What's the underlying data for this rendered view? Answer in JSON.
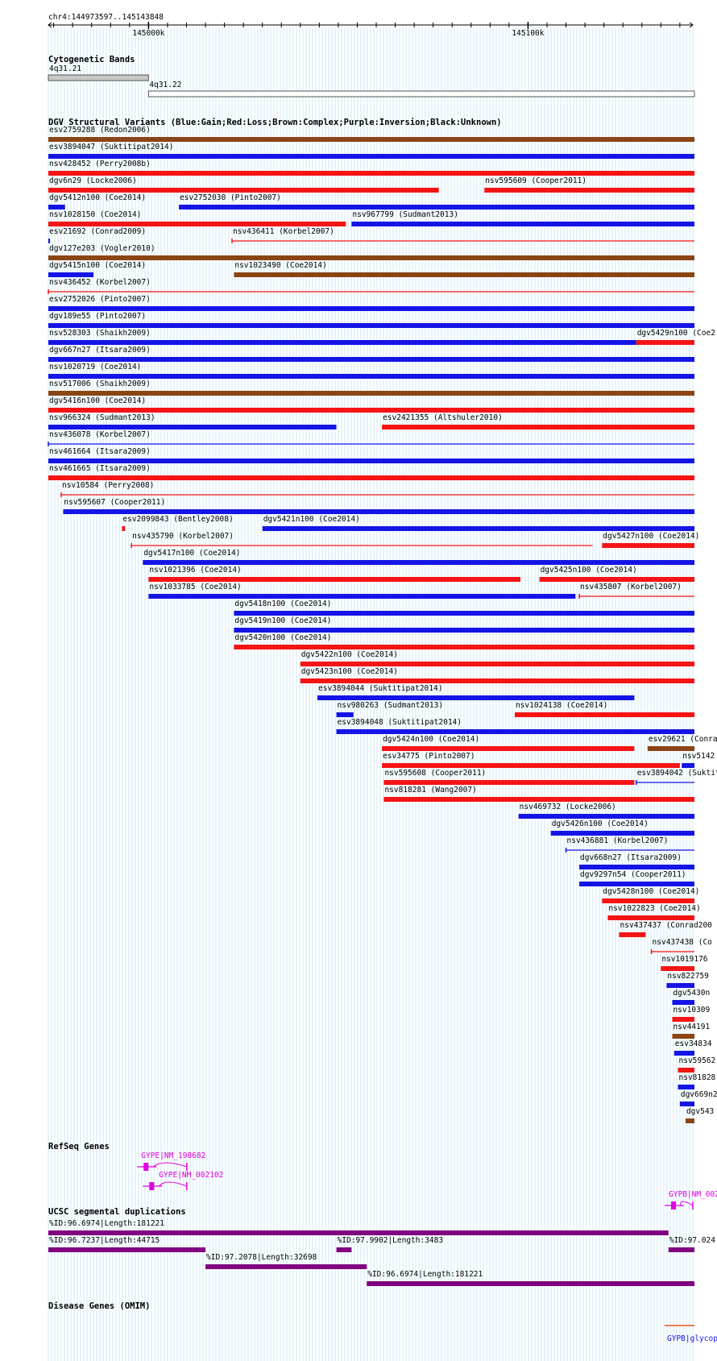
{
  "ruler": {
    "region": "chr4:144973597..145143848",
    "ticks": [
      {
        "label": "145000k",
        "pos": 145000000
      },
      {
        "label": "145100k",
        "pos": 145100000
      }
    ]
  },
  "view": {
    "start": 144973597,
    "end": 145143848
  },
  "colors": {
    "gain": "#1414e6",
    "loss": "#f51414",
    "complex": "#8b4513",
    "inversion": "#800080",
    "unknown": "#000000",
    "gene": "#e000e0",
    "omim": "#f03000",
    "grid": "#8ecae6"
  },
  "tracks": {
    "cytobands": {
      "title": "Cytogenetic Bands",
      "bands": [
        {
          "name": "4q31.21",
          "style": "gray",
          "start": 144973597,
          "end": 145000000
        },
        {
          "name": "4q31.22",
          "style": "white",
          "start": 145000000,
          "end": 145143848
        }
      ]
    },
    "dgv": {
      "title": "DGV Structural Variants (Blue:Gain;Red:Loss;Brown:Complex;Purple:Inversion;Black:Unknown)",
      "variants": [
        {
          "row": 0,
          "label": "esv2759288 (Redon2006)",
          "type": "complex",
          "style": "thick",
          "start": 144973597,
          "end": 145143848
        },
        {
          "row": 1,
          "label": "esv3894047 (Suktitipat2014)",
          "type": "gain",
          "style": "thick",
          "start": 144973597,
          "end": 145143848
        },
        {
          "row": 2,
          "label": "nsv428452 (Perry2008b)",
          "type": "loss",
          "style": "thick",
          "start": 144973597,
          "end": 145143848
        },
        {
          "row": 3,
          "label": "dgv6n29 (Locke2006)",
          "type": "loss",
          "style": "thick",
          "start": 144973597,
          "end": 145076500
        },
        {
          "row": 3,
          "label": "nsv595609 (Cooper2011)",
          "type": "loss",
          "style": "thick",
          "start": 145088500,
          "end": 145143848
        },
        {
          "row": 4,
          "label": "dgv5412n100 (Coe2014)",
          "type": "gain",
          "style": "thick",
          "start": 144973597,
          "end": 144978000
        },
        {
          "row": 4,
          "label": "esv2752030 (Pinto2007)",
          "type": "gain",
          "style": "thick",
          "start": 145008000,
          "end": 145143848
        },
        {
          "row": 5,
          "label": "nsv1028150 (Coe2014)",
          "type": "loss",
          "style": "thick",
          "start": 144973597,
          "end": 145052000
        },
        {
          "row": 5,
          "label": "nsv967799 (Sudmant2013)",
          "type": "gain",
          "style": "thick",
          "start": 145053500,
          "end": 145143848
        },
        {
          "row": 6,
          "label": "esv21692 (Conrad2009)",
          "type": "gain",
          "style": "thick",
          "start": 144973597,
          "end": 144974000
        },
        {
          "row": 6,
          "label": "nsv436411 (Korbel2007)",
          "type": "loss",
          "style": "thin",
          "start": 145022000,
          "end": 145143848
        },
        {
          "row": 7,
          "label": "dgv127e203 (Vogler2010)",
          "type": "complex",
          "style": "thick",
          "start": 144973597,
          "end": 145143848
        },
        {
          "row": 8,
          "label": "dgv5415n100 (Coe2014)",
          "type": "gain",
          "style": "thick",
          "start": 144973597,
          "end": 144985500
        },
        {
          "row": 8,
          "label": "nsv1023490 (Coe2014)",
          "type": "complex",
          "style": "thick",
          "start": 145022500,
          "end": 145143848
        },
        {
          "row": 9,
          "label": "nsv436452 (Korbel2007)",
          "type": "loss",
          "style": "thin",
          "start": 144973597,
          "end": 145143848
        },
        {
          "row": 10,
          "label": "esv2752026 (Pinto2007)",
          "type": "gain",
          "style": "thick",
          "start": 144973597,
          "end": 145143848
        },
        {
          "row": 11,
          "label": "dgv189e55 (Pinto2007)",
          "type": "gain",
          "style": "thick",
          "start": 144973597,
          "end": 145143848
        },
        {
          "row": 12,
          "label": "nsv528303 (Shaikh2009)",
          "type": "gain",
          "style": "thick",
          "start": 144973597,
          "end": 145128500
        },
        {
          "row": 12,
          "label": "dgv5429n100 (Coe2",
          "type": "loss",
          "style": "thick",
          "start": 145128500,
          "end": 145143848
        },
        {
          "row": 13,
          "label": "dgv667n27 (Itsara2009)",
          "type": "gain",
          "style": "thick",
          "start": 144973597,
          "end": 145143848
        },
        {
          "row": 14,
          "label": "nsv1020719 (Coe2014)",
          "type": "gain",
          "style": "thick",
          "start": 144973597,
          "end": 145143848
        },
        {
          "row": 15,
          "label": "nsv517006 (Shaikh2009)",
          "type": "complex",
          "style": "thick",
          "start": 144973597,
          "end": 145143848
        },
        {
          "row": 16,
          "label": "dgv5416n100 (Coe2014)",
          "type": "loss",
          "style": "thick",
          "start": 144973597,
          "end": 145143848
        },
        {
          "row": 17,
          "label": "nsv966324 (Sudmant2013)",
          "type": "gain",
          "style": "thick",
          "start": 144973597,
          "end": 145049500
        },
        {
          "row": 17,
          "label": "esv2421355 (Altshuler2010)",
          "type": "loss",
          "style": "thick",
          "start": 145061500,
          "end": 145143848
        },
        {
          "row": 18,
          "label": "nsv436078 (Korbel2007)",
          "type": "gain",
          "style": "thin",
          "start": 144973597,
          "end": 145143848
        },
        {
          "row": 19,
          "label": "nsv461664 (Itsara2009)",
          "type": "gain",
          "style": "thick",
          "start": 144973597,
          "end": 145143848
        },
        {
          "row": 20,
          "label": "nsv461665 (Itsara2009)",
          "type": "loss",
          "style": "thick",
          "start": 144973597,
          "end": 145143848
        },
        {
          "row": 21,
          "label": "nsv10584 (Perry2008)",
          "type": "loss",
          "style": "thin",
          "start": 144977000,
          "end": 145143848
        },
        {
          "row": 22,
          "label": "nsv595607 (Cooper2011)",
          "type": "gain",
          "style": "thick",
          "start": 144977500,
          "end": 145143848
        },
        {
          "row": 23,
          "label": "esv2099843 (Bentley2008)",
          "type": "loss",
          "style": "thick",
          "start": 144993000,
          "end": 144993800
        },
        {
          "row": 23,
          "label": "dgv5421n100 (Coe2014)",
          "type": "gain",
          "style": "thick",
          "start": 145030000,
          "end": 145143848
        },
        {
          "row": 24,
          "label": "nsv435790 (Korbel2007)",
          "type": "loss",
          "style": "thin",
          "start": 144995500,
          "end": 145117000
        },
        {
          "row": 24,
          "label": "dgv5427n100 (Coe2014)",
          "type": "loss",
          "style": "thick",
          "start": 145119500,
          "end": 145143848
        },
        {
          "row": 25,
          "label": "dgv5417n100 (Coe2014)",
          "type": "gain",
          "style": "thick",
          "start": 144998500,
          "end": 145143848
        },
        {
          "row": 26,
          "label": "nsv1021396 (Coe2014)",
          "type": "loss",
          "style": "thick",
          "start": 145000000,
          "end": 145098000
        },
        {
          "row": 26,
          "label": "dgv5425n100 (Coe2014)",
          "type": "loss",
          "style": "thick",
          "start": 145103000,
          "end": 145143848
        },
        {
          "row": 27,
          "label": "nsv1033785 (Coe2014)",
          "type": "gain",
          "style": "thick",
          "start": 145000000,
          "end": 145112500
        },
        {
          "row": 27,
          "label": "nsv435807 (Korbel2007)",
          "type": "loss",
          "style": "thin",
          "start": 145113500,
          "end": 145143848
        },
        {
          "row": 28,
          "label": "dgv5418n100 (Coe2014)",
          "type": "gain",
          "style": "thick",
          "start": 145022500,
          "end": 145143848
        },
        {
          "row": 29,
          "label": "dgv5419n100 (Coe2014)",
          "type": "gain",
          "style": "thick",
          "start": 145022500,
          "end": 145143848
        },
        {
          "row": 30,
          "label": "dgv5420n100 (Coe2014)",
          "type": "loss",
          "style": "thick",
          "start": 145022500,
          "end": 145143848
        },
        {
          "row": 31,
          "label": "dgv5422n100 (Coe2014)",
          "type": "loss",
          "style": "thick",
          "start": 145040000,
          "end": 145143848
        },
        {
          "row": 32,
          "label": "dgv5423n100 (Coe2014)",
          "type": "loss",
          "style": "thick",
          "start": 145040000,
          "end": 145143848
        },
        {
          "row": 33,
          "label": "esv3894044 (Suktitipat2014)",
          "type": "gain",
          "style": "thick",
          "start": 145044500,
          "end": 145128000
        },
        {
          "row": 34,
          "label": "nsv980263 (Sudmant2013)",
          "type": "gain",
          "style": "thick",
          "start": 145049500,
          "end": 145054000
        },
        {
          "row": 34,
          "label": "nsv1024138 (Coe2014)",
          "type": "loss",
          "style": "thick",
          "start": 145096500,
          "end": 145143848
        },
        {
          "row": 35,
          "label": "esv3894048 (Suktitipat2014)",
          "type": "gain",
          "style": "thick",
          "start": 145049500,
          "end": 145143848
        },
        {
          "row": 36,
          "label": "dgv5424n100 (Coe2014)",
          "type": "loss",
          "style": "thick",
          "start": 145061500,
          "end": 145128000
        },
        {
          "row": 36,
          "label": "esv29621 (Conra",
          "type": "complex",
          "style": "thick",
          "start": 145131500,
          "end": 145143848
        },
        {
          "row": 37,
          "label": "esv34775 (Pinto2007)",
          "type": "loss",
          "style": "thick",
          "start": 145061500,
          "end": 145140000
        },
        {
          "row": 37,
          "label": "nsv5142",
          "type": "gain",
          "style": "thick",
          "start": 145140500,
          "end": 145143848
        },
        {
          "row": 38,
          "label": "nsv595608 (Cooper2011)",
          "type": "loss",
          "style": "thick",
          "start": 145062000,
          "end": 145128000
        },
        {
          "row": 38,
          "label": "esv3894042 (Suktit",
          "type": "gain",
          "style": "thin",
          "start": 145128500,
          "end": 145143848
        },
        {
          "row": 39,
          "label": "nsv818281 (Wang2007)",
          "type": "loss",
          "style": "thick",
          "start": 145062000,
          "end": 145143848
        },
        {
          "row": 40,
          "label": "nsv469732 (Locke2006)",
          "type": "gain",
          "style": "thick",
          "start": 145097500,
          "end": 145143848
        },
        {
          "row": 41,
          "label": "dgv5426n100 (Coe2014)",
          "type": "gain",
          "style": "thick",
          "start": 145106000,
          "end": 145143848
        },
        {
          "row": 42,
          "label": "nsv436881 (Korbel2007)",
          "type": "gain",
          "style": "thin",
          "start": 145110000,
          "end": 145143848
        },
        {
          "row": 43,
          "label": "dgv668n27 (Itsara2009)",
          "type": "gain",
          "style": "thick",
          "start": 145113500,
          "end": 145143848
        },
        {
          "row": 44,
          "label": "dgv9297n54 (Cooper2011)",
          "type": "gain",
          "style": "thick",
          "start": 145113500,
          "end": 145143848
        },
        {
          "row": 45,
          "label": "dgv5428n100 (Coe2014)",
          "type": "loss",
          "style": "thick",
          "start": 145119500,
          "end": 145143848
        },
        {
          "row": 46,
          "label": "nsv1022823 (Coe2014)",
          "type": "loss",
          "style": "thick",
          "start": 145121000,
          "end": 145143848
        },
        {
          "row": 47,
          "label": "nsv437437 (Conrad200",
          "type": "loss",
          "style": "thick",
          "start": 145124000,
          "end": 145131000
        },
        {
          "row": 48,
          "label": "nsv437438 (Co",
          "type": "loss",
          "style": "thin",
          "start": 145132500,
          "end": 145143848
        },
        {
          "row": 49,
          "label": "nsv1019176",
          "type": "loss",
          "style": "thick",
          "start": 145135000,
          "end": 145143848
        },
        {
          "row": 50,
          "label": "nsv822759",
          "type": "gain",
          "style": "thick",
          "start": 145136500,
          "end": 145143848
        },
        {
          "row": 51,
          "label": "dgv5430n",
          "type": "gain",
          "style": "thick",
          "start": 145138000,
          "end": 145143848
        },
        {
          "row": 52,
          "label": "nsv10309",
          "type": "loss",
          "style": "thick",
          "start": 145138000,
          "end": 145143848
        },
        {
          "row": 53,
          "label": "nsv44191",
          "type": "complex",
          "style": "thick",
          "start": 145138000,
          "end": 145143848
        },
        {
          "row": 54,
          "label": "esv34834",
          "type": "gain",
          "style": "thick",
          "start": 145138500,
          "end": 145143848
        },
        {
          "row": 55,
          "label": "nsv59562",
          "type": "loss",
          "style": "thick",
          "start": 145139500,
          "end": 145143848
        },
        {
          "row": 56,
          "label": "nsv81828",
          "type": "gain",
          "style": "thick",
          "start": 145139500,
          "end": 145143848
        },
        {
          "row": 57,
          "label": "dgv669n2",
          "type": "gain",
          "style": "thick",
          "start": 145140000,
          "end": 145143848
        },
        {
          "row": 58,
          "label": "dgv543",
          "type": "complex",
          "style": "thick",
          "start": 145141500,
          "end": 145143848
        }
      ]
    },
    "refseq": {
      "title": "RefSeq Genes",
      "genes": [
        {
          "label": "GYPE|NM_198682",
          "start": 144997000,
          "end": 145010500
        },
        {
          "label": "GYPE|NM_002102",
          "start": 144998500,
          "end": 145010500
        },
        {
          "label": "GYPB|NM_002",
          "start": 145136000,
          "end": 145143848
        }
      ]
    },
    "segdups": {
      "title": "UCSC segmental duplications",
      "items": [
        {
          "row": 0,
          "label": "%ID:96.6974|Length:181221",
          "start": 144973597,
          "end": 145137000
        },
        {
          "row": 1,
          "label": "%ID:96.7237|Length:44715",
          "start": 144973597,
          "end": 145015000
        },
        {
          "row": 1,
          "label": "%ID:97.9902|Length:3483",
          "start": 145049500,
          "end": 145053500
        },
        {
          "row": 1,
          "label": "%ID:97.024",
          "start": 145137000,
          "end": 145143848
        },
        {
          "row": 2,
          "label": "%ID:97.2078|Length:32698",
          "start": 145015000,
          "end": 145057500
        },
        {
          "row": 3,
          "label": "%ID:96.6974|Length:181221",
          "start": 145057500,
          "end": 145143848
        }
      ]
    },
    "omim": {
      "title": "Disease Genes (OMIM)",
      "genes": [
        {
          "label": "GYPB|glycop",
          "start": 145136000,
          "end": 145143848
        }
      ]
    }
  }
}
